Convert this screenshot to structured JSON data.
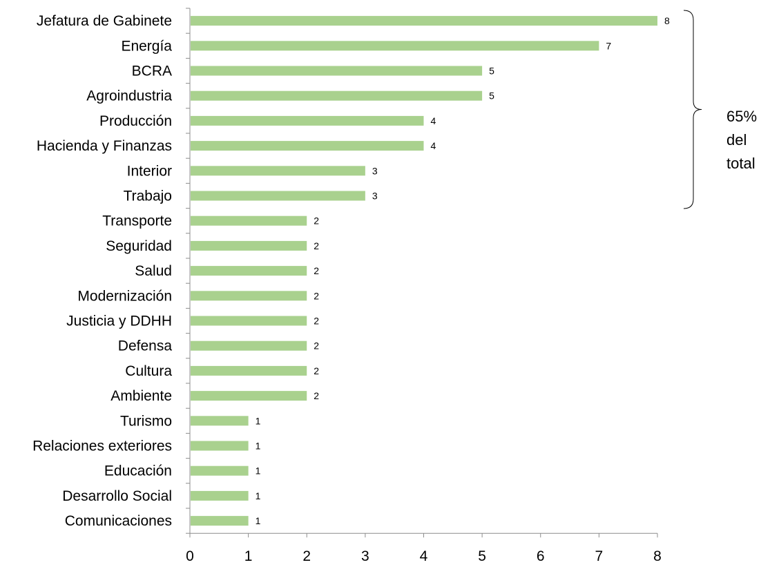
{
  "chart_data": {
    "type": "bar",
    "orientation": "horizontal",
    "categories": [
      "Jefatura de Gabinete",
      "Energía",
      "BCRA",
      "Agroindustria",
      "Producción",
      "Hacienda y Finanzas",
      "Interior",
      "Trabajo",
      "Transporte",
      "Seguridad",
      "Salud",
      "Modernización",
      "Justicia y DDHH",
      "Defensa",
      "Cultura",
      "Ambiente",
      "Turismo",
      "Relaciones exteriores",
      "Educación",
      "Desarrollo Social",
      "Comunicaciones"
    ],
    "values": [
      8,
      7,
      5,
      5,
      4,
      4,
      3,
      3,
      2,
      2,
      2,
      2,
      2,
      2,
      2,
      2,
      1,
      1,
      1,
      1,
      1
    ],
    "xlim": [
      0,
      8
    ],
    "xticks": [
      "0",
      "1",
      "2",
      "3",
      "4",
      "5",
      "6",
      "7",
      "8"
    ],
    "grid": false,
    "legend": "none",
    "bar_color": "#a9d18e",
    "axis_color": "#8c8c8c",
    "annotation": {
      "lines": [
        "65%",
        "del",
        "total"
      ],
      "bracket_spans_categories": [
        "Jefatura de Gabinete",
        "Trabajo"
      ]
    }
  }
}
